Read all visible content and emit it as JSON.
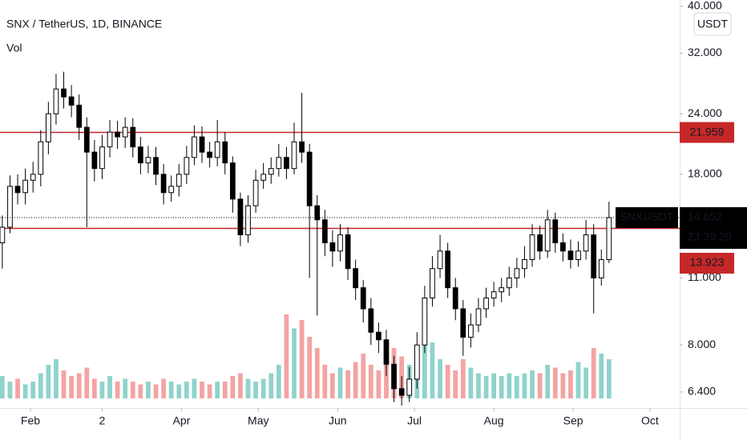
{
  "chart_data": {
    "type": "candlestick",
    "title": "SNX / TetherUS, 1D, BINANCE",
    "volume_label": "Vol",
    "currency_button": "USDT",
    "log_scale": true,
    "ylim": [
      5.93,
      41.2
    ],
    "yticks": [
      {
        "value": 40,
        "label": "40.000"
      },
      {
        "value": 32,
        "label": "32.000"
      },
      {
        "value": 24,
        "label": "24.000"
      },
      {
        "value": 18,
        "label": "18.000"
      },
      {
        "value": 11,
        "label": "11.000"
      },
      {
        "value": 8,
        "label": "8.000"
      },
      {
        "value": 6.4,
        "label": "6.400"
      }
    ],
    "xlim": [
      19.1,
      284.6
    ],
    "xticks": [
      {
        "value": 31,
        "label": "Feb"
      },
      {
        "value": 59,
        "label": "2"
      },
      {
        "value": 90,
        "label": "Apr"
      },
      {
        "value": 120,
        "label": "May"
      },
      {
        "value": 151,
        "label": "Jun"
      },
      {
        "value": 181,
        "label": "Jul"
      },
      {
        "value": 212,
        "label": "Aug"
      },
      {
        "value": 243,
        "label": "Sep"
      },
      {
        "value": 273,
        "label": "Oct"
      }
    ],
    "up_color": "#ffffff",
    "down_color": "#000000",
    "volume_up_color": "#8fd3cc",
    "volume_down_color": "#f4a3a3",
    "volume_lim": [
      0,
      100
    ],
    "x": [
      20,
      23,
      26,
      29,
      32,
      35,
      38,
      41,
      44,
      47,
      50,
      53,
      56,
      59,
      62,
      65,
      68,
      71,
      74,
      77,
      80,
      83,
      86,
      89,
      92,
      95,
      98,
      101,
      104,
      107,
      110,
      113,
      116,
      119,
      122,
      125,
      128,
      131,
      134,
      137,
      140,
      143,
      146,
      149,
      152,
      155,
      158,
      161,
      164,
      167,
      170,
      173,
      176,
      179,
      182,
      185,
      188,
      191,
      194,
      197,
      200,
      203,
      206,
      209,
      212,
      215,
      218,
      221,
      224,
      227,
      230,
      233,
      236,
      239,
      242,
      245,
      248,
      251,
      254,
      257
    ],
    "open": [
      13,
      14,
      17,
      16.5,
      17.5,
      18,
      21,
      24,
      27,
      26,
      25,
      22.5,
      20,
      18.5,
      20.5,
      22,
      21.5,
      22.5,
      20.5,
      19,
      19.5,
      18,
      16.5,
      17,
      18,
      19.5,
      21.5,
      20,
      19.5,
      21,
      19,
      16,
      13.5,
      15.5,
      17.5,
      18,
      18.5,
      19.5,
      18.5,
      21,
      20,
      15.5,
      14.5,
      13,
      12.5,
      13.5,
      11.5,
      10.5,
      9.5,
      8.5,
      8.2,
      7.3,
      6.5,
      6.3,
      6.8,
      8,
      10,
      11.5,
      12.5,
      10.5,
      9.5,
      8.3,
      8.8,
      9.5,
      10,
      10.3,
      10.5,
      11,
      11.5,
      12,
      13.5,
      12.5,
      14.5,
      13,
      12.5,
      12,
      12.5,
      13.5,
      11,
      12
    ],
    "high": [
      14.8,
      17.9,
      18,
      18.5,
      19.1,
      22.2,
      25.4,
      29,
      29.3,
      27.5,
      26.3,
      23.6,
      21.2,
      21.7,
      23.3,
      23.2,
      23.6,
      23.5,
      21.5,
      20.6,
      20.5,
      18.9,
      17.9,
      18.9,
      20.6,
      22.7,
      22.6,
      21,
      23.3,
      22,
      19.6,
      16.5,
      16.3,
      18.4,
      19,
      19.5,
      20.8,
      20.5,
      23,
      26.5,
      20.8,
      16.3,
      15.2,
      13.8,
      14.2,
      14,
      12,
      10.9,
      10,
      8.9,
      8.6,
      7.6,
      6.9,
      7.2,
      8.5,
      10.6,
      12.2,
      13.5,
      13,
      11,
      9.9,
      9.3,
      10,
      10.5,
      10.8,
      11,
      11.6,
      12.1,
      12.8,
      14.2,
      14.1,
      15.2,
      15,
      13.6,
      13.2,
      13.1,
      14.5,
      14.2,
      12.6,
      15.8
    ],
    "low": [
      11.5,
      13.6,
      15.6,
      15.6,
      16.5,
      17,
      19.8,
      22.8,
      24.6,
      23.6,
      21.2,
      14,
      17.4,
      17.6,
      19.5,
      20.3,
      20.4,
      19.5,
      18,
      18.1,
      17.1,
      15.6,
      15.8,
      16.2,
      17.2,
      18.8,
      19,
      18.6,
      18.7,
      18,
      15,
      12.8,
      13,
      15,
      16.8,
      17.2,
      17.8,
      17.6,
      18,
      19,
      11,
      9.2,
      12.2,
      11.6,
      11.9,
      10.9,
      9.9,
      8.9,
      8,
      7.7,
      6.9,
      6.1,
      6,
      6.1,
      6.5,
      7.7,
      9.6,
      11,
      10,
      9,
      7.6,
      7.9,
      8.5,
      9.1,
      9.6,
      9.8,
      10.1,
      10.5,
      11,
      11.6,
      12,
      12.1,
      12.4,
      11.9,
      11.5,
      11.6,
      12,
      9.3,
      10.6,
      11.8
    ],
    "close": [
      14,
      17,
      16.5,
      17.5,
      18,
      21,
      24,
      27,
      26,
      25,
      22.5,
      20,
      18.5,
      20.5,
      22,
      21.5,
      22.5,
      20.5,
      19,
      19.5,
      18,
      16.5,
      17,
      18,
      19.5,
      21.5,
      20,
      19.5,
      21,
      19,
      16,
      13.5,
      15.5,
      17.5,
      18,
      18.5,
      19.5,
      18.5,
      21,
      20,
      15.5,
      14.5,
      13,
      12.5,
      13.5,
      11.5,
      10.5,
      9.5,
      8.5,
      8.2,
      7.3,
      6.5,
      6.3,
      6.8,
      8,
      10,
      11.5,
      12.5,
      10.5,
      9.5,
      8.3,
      8.8,
      9.5,
      10,
      10.3,
      10.5,
      11,
      11.5,
      12,
      13.5,
      12.5,
      14.5,
      13,
      12.5,
      12,
      12.5,
      13.5,
      11,
      12,
      14.652
    ],
    "volume": [
      8,
      6,
      7,
      5,
      6,
      9,
      12,
      14,
      10,
      8,
      9,
      11,
      7,
      6,
      8,
      6,
      7,
      6,
      5,
      6,
      5,
      7,
      6,
      5,
      6,
      7,
      6,
      5,
      6,
      6,
      8,
      9,
      7,
      6,
      7,
      9,
      12,
      30,
      25,
      28,
      22,
      18,
      12,
      9,
      11,
      10,
      13,
      16,
      12,
      10,
      14,
      18,
      15,
      12,
      16,
      26,
      20,
      14,
      12,
      10,
      14,
      11,
      9,
      8,
      9,
      8,
      9,
      8,
      9,
      10,
      9,
      12,
      11,
      9,
      10,
      13,
      11,
      18,
      16,
      14
    ],
    "lines": [
      {
        "value": 21.959,
        "color": "#c62828"
      },
      {
        "value": 13.923,
        "color": "#c62828"
      }
    ],
    "last_price": {
      "value": 14.652,
      "symbol": "SNXUSDT",
      "countdown": "23:39:20"
    }
  }
}
